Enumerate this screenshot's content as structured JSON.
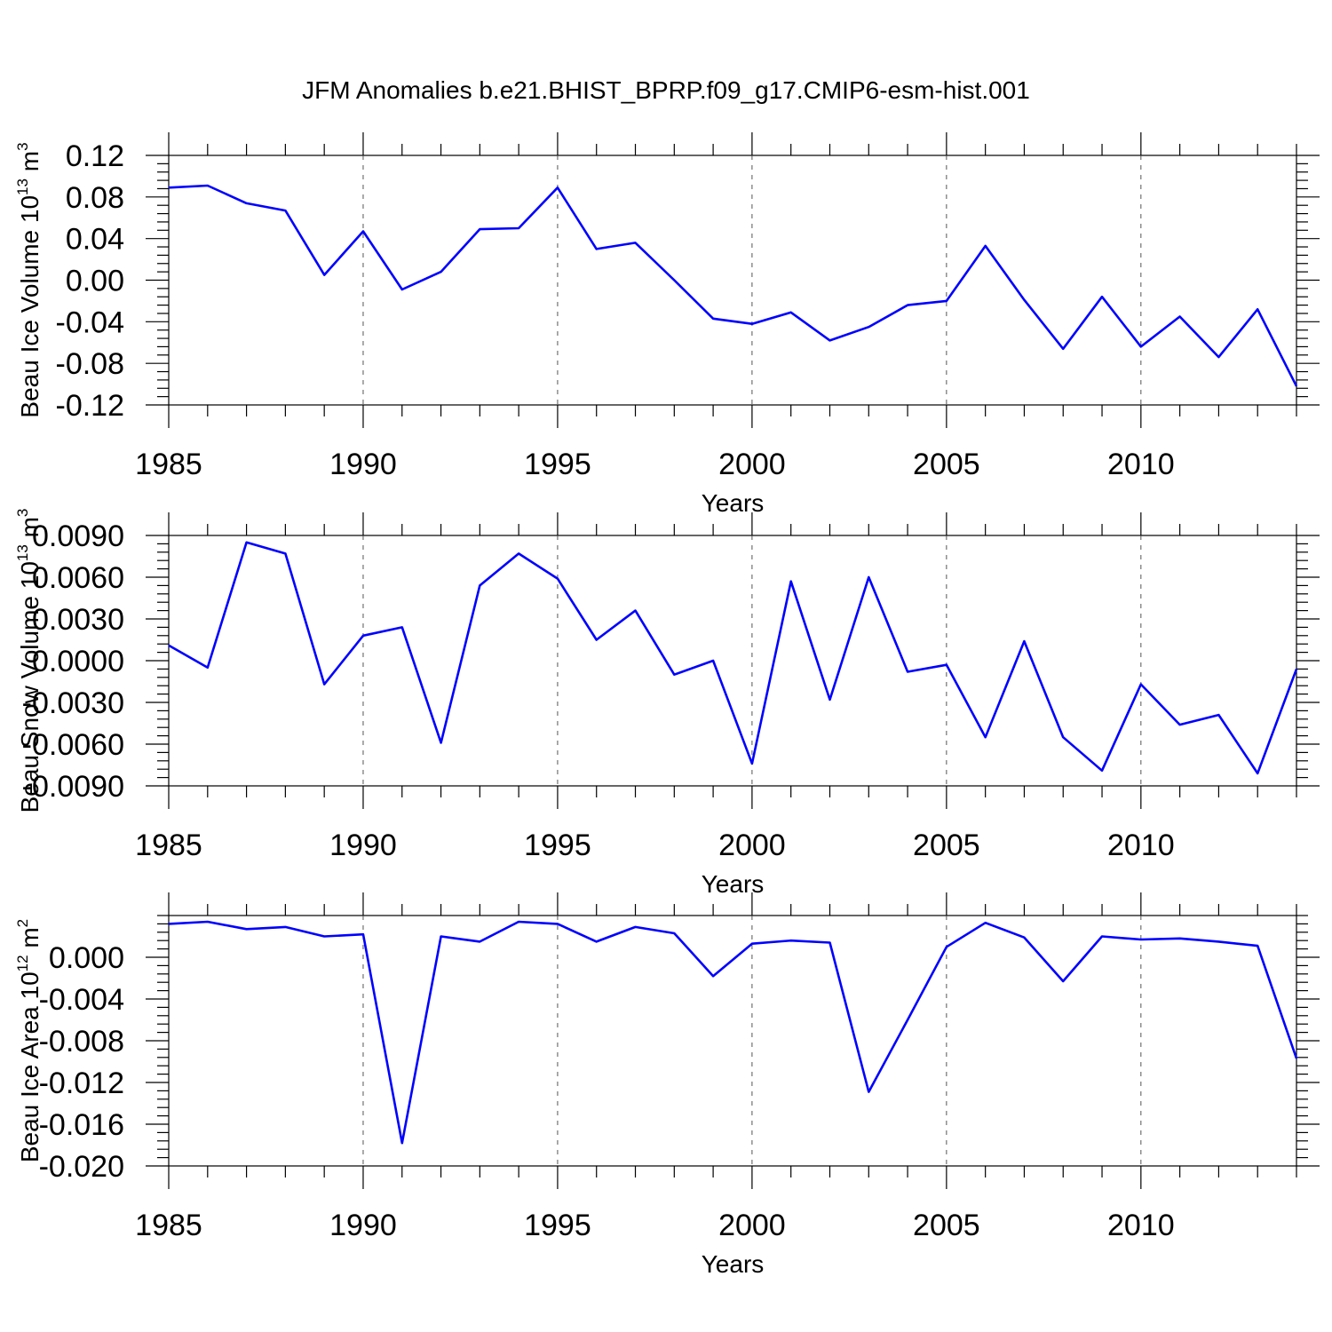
{
  "chart_data": [
    {
      "type": "line",
      "title": "JFM Anomalies b.e21.BHIST_BPRP.f09_g17.CMIP6-esm-hist.001",
      "ylabel": "Beau Ice Volume 10",
      "ylabel_exp": "13",
      "ylabel_unit": " m",
      "ylabel_unit_exp": "3",
      "xlabel": "Years",
      "xlim": [
        1985,
        2014
      ],
      "ylim": [
        -0.12,
        0.12
      ],
      "yticks": [
        -0.12,
        -0.08,
        -0.04,
        0.0,
        0.04,
        0.08,
        0.12
      ],
      "ytick_labels": [
        "-0.12",
        "-0.08",
        "-0.04",
        "0.00",
        "0.04",
        "0.08",
        "0.12"
      ],
      "xticks": [
        1985,
        1990,
        1995,
        2000,
        2005,
        2010
      ],
      "xtick_labels": [
        "1985",
        "1990",
        "1995",
        "2000",
        "2005",
        "2010"
      ],
      "line_color": "#0000ff",
      "x": [
        1985,
        1986,
        1987,
        1988,
        1989,
        1990,
        1991,
        1992,
        1993,
        1994,
        1995,
        1996,
        1997,
        1998,
        1999,
        2000,
        2001,
        2002,
        2003,
        2004,
        2005,
        2006,
        2007,
        2008,
        2009,
        2010,
        2011,
        2012,
        2013,
        2014
      ],
      "values": [
        0.089,
        0.091,
        0.074,
        0.067,
        0.005,
        0.047,
        -0.009,
        0.008,
        0.049,
        0.05,
        0.089,
        0.03,
        0.036,
        0.0,
        -0.037,
        -0.042,
        -0.031,
        -0.058,
        -0.045,
        -0.024,
        -0.02,
        0.033,
        -0.019,
        -0.066,
        -0.016,
        -0.064,
        -0.035,
        -0.074,
        -0.028,
        -0.102
      ]
    },
    {
      "type": "line",
      "ylabel": "Beau Snow Volume 10",
      "ylabel_exp": "13",
      "ylabel_unit": " m",
      "ylabel_unit_exp": "3",
      "xlabel": "Years",
      "xlim": [
        1985,
        2014
      ],
      "ylim": [
        -0.009,
        0.009
      ],
      "yticks": [
        -0.009,
        -0.006,
        -0.003,
        0.0,
        0.003,
        0.006,
        0.009
      ],
      "ytick_labels": [
        "-0.0090",
        "-0.0060",
        "-0.0030",
        "0.0000",
        "0.0030",
        "0.0060",
        "0.0090"
      ],
      "xticks": [
        1985,
        1990,
        1995,
        2000,
        2005,
        2010
      ],
      "xtick_labels": [
        "1985",
        "1990",
        "1995",
        "2000",
        "2005",
        "2010"
      ],
      "line_color": "#0000ff",
      "x": [
        1985,
        1986,
        1987,
        1988,
        1989,
        1990,
        1991,
        1992,
        1993,
        1994,
        1995,
        1996,
        1997,
        1998,
        1999,
        2000,
        2001,
        2002,
        2003,
        2004,
        2005,
        2006,
        2007,
        2008,
        2009,
        2010,
        2011,
        2012,
        2013,
        2014
      ],
      "values": [
        0.0011,
        -0.0005,
        0.0085,
        0.0077,
        -0.0017,
        0.0018,
        0.0024,
        -0.0059,
        0.0054,
        0.0077,
        0.0059,
        0.0015,
        0.0036,
        -0.001,
        0.0,
        -0.0074,
        0.0057,
        -0.0028,
        0.006,
        -0.0008,
        -0.0003,
        -0.0055,
        0.0014,
        -0.0055,
        -0.0079,
        -0.0017,
        -0.0046,
        -0.0039,
        -0.0081,
        -0.0006
      ]
    },
    {
      "type": "line",
      "ylabel": "Beau Ice Area 10",
      "ylabel_exp": "12",
      "ylabel_unit": " m",
      "ylabel_unit_exp": "2",
      "xlabel": "Years",
      "xlim": [
        1985,
        2014
      ],
      "ylim": [
        -0.02,
        0.004
      ],
      "yticks": [
        -0.02,
        -0.016,
        -0.012,
        -0.008,
        -0.004,
        0.0
      ],
      "ytick_labels": [
        "-0.020",
        "-0.016",
        "-0.012",
        "-0.008",
        "-0.004",
        "0.000"
      ],
      "xticks": [
        1985,
        1990,
        1995,
        2000,
        2005,
        2010
      ],
      "xtick_labels": [
        "1985",
        "1990",
        "1995",
        "2000",
        "2005",
        "2010"
      ],
      "line_color": "#0000ff",
      "x": [
        1985,
        1986,
        1987,
        1988,
        1989,
        1990,
        1991,
        1992,
        1993,
        1994,
        1995,
        1996,
        1997,
        1998,
        1999,
        2000,
        2001,
        2002,
        2003,
        2004,
        2005,
        2006,
        2007,
        2008,
        2009,
        2010,
        2011,
        2012,
        2013,
        2014
      ],
      "values": [
        0.0032,
        0.0034,
        0.0027,
        0.0029,
        0.002,
        0.0022,
        -0.0178,
        0.002,
        0.0015,
        0.0034,
        0.0032,
        0.0015,
        0.0029,
        0.0023,
        -0.0018,
        0.0013,
        0.0016,
        0.0014,
        -0.0129,
        -0.006,
        0.001,
        0.0033,
        0.0019,
        -0.0023,
        0.002,
        0.0017,
        0.0018,
        0.0015,
        0.0011,
        -0.0097
      ]
    }
  ]
}
